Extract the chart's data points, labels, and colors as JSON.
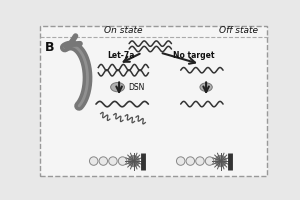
{
  "bg_color": "#e8e8e8",
  "inner_bg": "#f5f5f5",
  "title_on": "On state",
  "title_off": "Off state",
  "label_B": "B",
  "label_let7a": "Let-7a",
  "label_notarget": "No target",
  "label_DSN": "DSN",
  "border_color": "#999999",
  "arrow_color": "#222222",
  "big_arrow_color": "#777777",
  "text_color": "#111111",
  "wave_color": "#333333",
  "bead_color": "#e0e0e0",
  "blob_color": "#b0b0b0",
  "divider_color": "#aaaaaa"
}
